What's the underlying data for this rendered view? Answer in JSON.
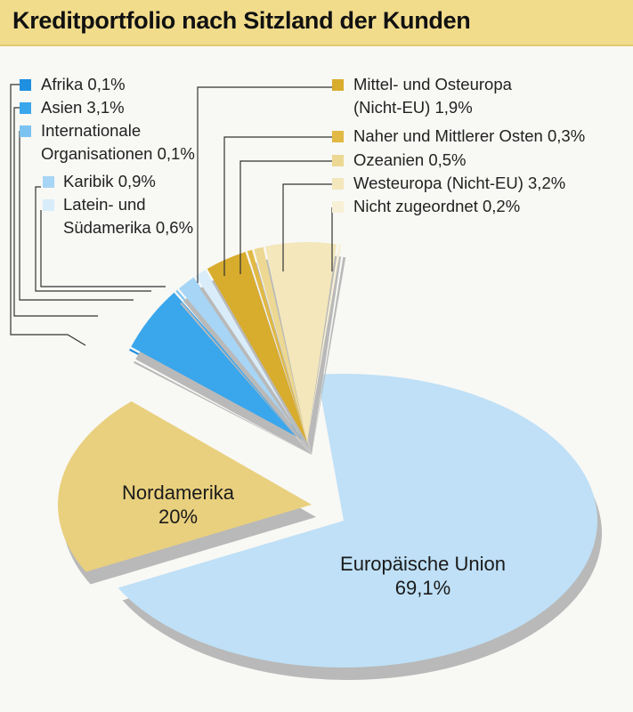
{
  "title": "Kreditportfolio nach Sitzland der Kunden",
  "chart_data": {
    "type": "pie",
    "title": "Kreditportfolio nach Sitzland der Kunden",
    "unit": "%",
    "slices": [
      {
        "label": "Europäische Union",
        "value": 69.1,
        "display": "69,1%",
        "color": "#bfe0f6"
      },
      {
        "label": "Nordamerika",
        "value": 20,
        "display": "20%",
        "color": "#e9d07e"
      },
      {
        "label": "Afrika",
        "value": 0.1,
        "display": "Afrika 0,1%",
        "color": "#1f8fe0"
      },
      {
        "label": "Asien",
        "value": 3.1,
        "display": "Asien 3,1%",
        "color": "#3aa6ec"
      },
      {
        "label": "Internationale Organisationen",
        "value": 0.1,
        "display_1": "Internationale",
        "display_2": "Organisationen 0,1%",
        "color": "#7cc3f2"
      },
      {
        "label": "Karibik",
        "value": 0.9,
        "display": "Karibik 0,9%",
        "color": "#a7d5f5"
      },
      {
        "label": "Latein- und Südamerika",
        "value": 0.6,
        "display_1": "Latein- und",
        "display_2": "Südamerika 0,6%",
        "color": "#d9ecfa"
      },
      {
        "label": "Mittel- und Osteuropa (Nicht-EU)",
        "value": 1.9,
        "display_1": "Mittel- und Osteuropa",
        "display_2": "(Nicht-EU) 1,9%",
        "color": "#d8ac2c"
      },
      {
        "label": "Naher und Mittlerer Osten",
        "value": 0.3,
        "display": "Naher und Mittlerer Osten 0,3%",
        "color": "#e1b944"
      },
      {
        "label": "Ozeanien",
        "value": 0.5,
        "display": "Ozeanien 0,5%",
        "color": "#ecd892"
      },
      {
        "label": "Westeuropa (Nicht-EU)",
        "value": 3.2,
        "display": "Westeuropa (Nicht-EU) 3,2%",
        "color": "#f3e7bb"
      },
      {
        "label": "Nicht zugeordnet",
        "value": 0.2,
        "display": "Nicht zugeordnet 0,2%",
        "color": "#f8f0d6"
      }
    ],
    "legend": "top"
  }
}
